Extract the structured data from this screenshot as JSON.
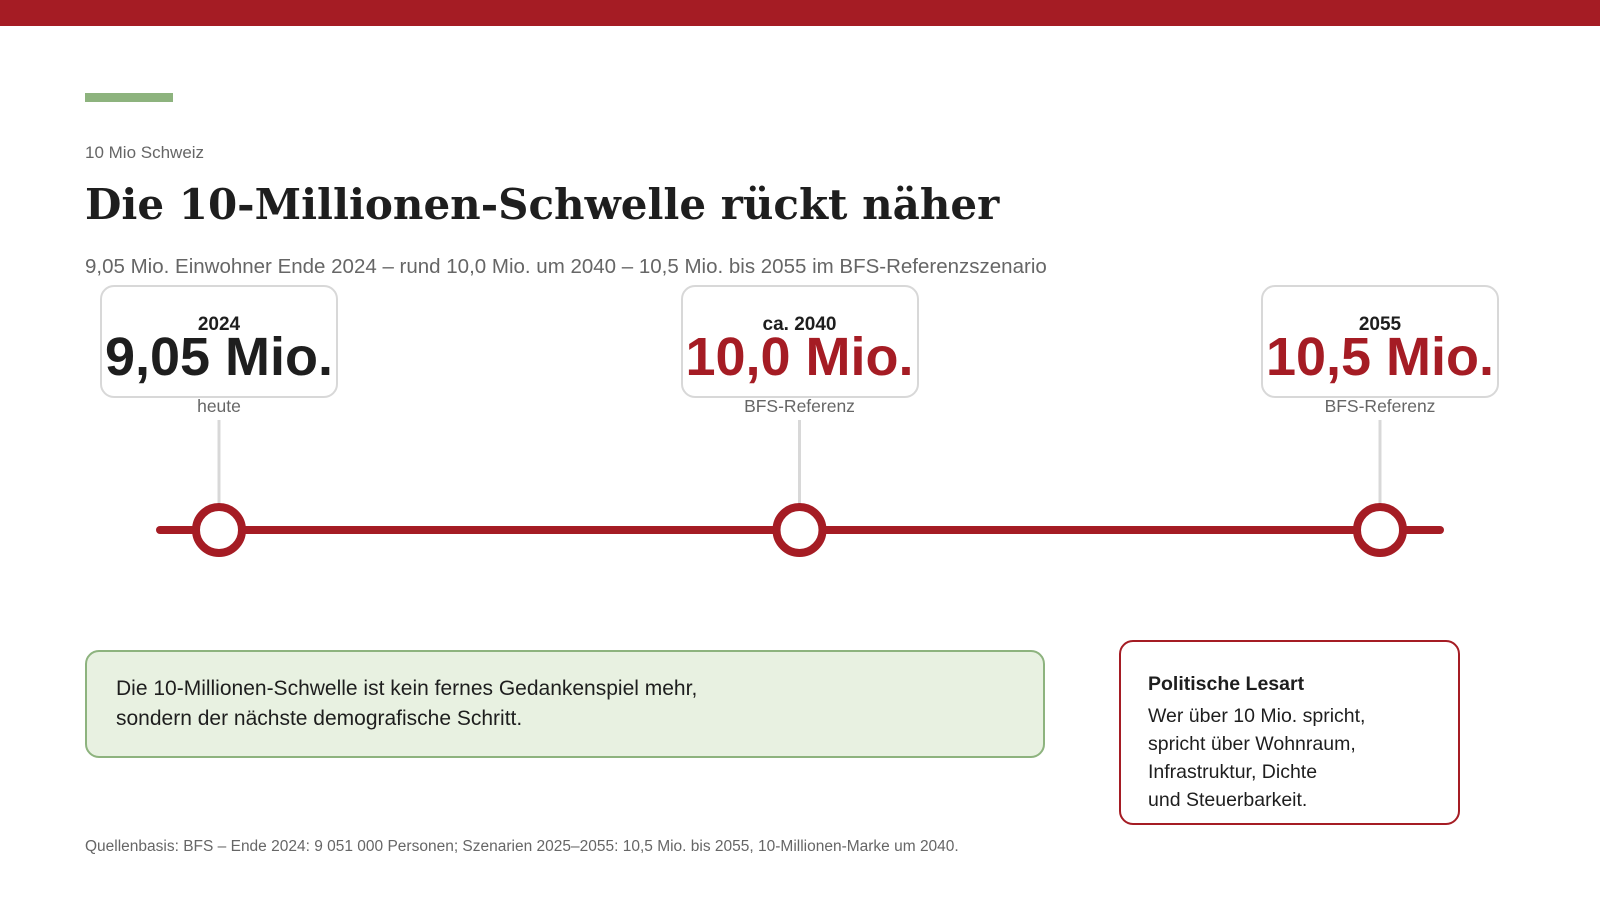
{
  "header": {
    "kicker": "10 Mio Schweiz",
    "title": "Die 10-Millionen-Schwelle rückt näher",
    "subtitle": "9,05 Mio. Einwohner Ende 2024 – rund 10,0 Mio. um 2040 – 10,5 Mio. bis 2055 im BFS-Referenzszenario"
  },
  "timeline": {
    "milestones": [
      {
        "year": "2024",
        "value": "9,05 Mio.",
        "note": "heute"
      },
      {
        "year": "ca. 2040",
        "value": "10,0 Mio.",
        "note": "BFS-Referenz"
      },
      {
        "year": "2055",
        "value": "10,5 Mio.",
        "note": "BFS-Referenz"
      }
    ]
  },
  "callout": {
    "lines": [
      "Die 10-Millionen-Schwelle ist kein fernes Gedankenspiel mehr,",
      "sondern der nächste demografische Schritt."
    ]
  },
  "side_note": {
    "title": "Politische Lesart",
    "lines": [
      "Wer über 10 Mio. spricht,",
      "spricht über Wohnraum,",
      "Infrastruktur, Dichte",
      "und Steuerbarkeit."
    ]
  },
  "footnote": "Quellenbasis: BFS – Ende 2024: 9 051 000 Personen; Szenarien 2025–2055: 10,5 Mio. bis 2055, 10-Millionen-Marke um 2040."
}
